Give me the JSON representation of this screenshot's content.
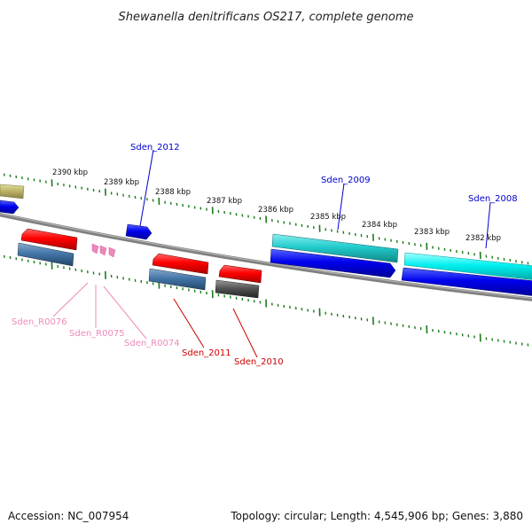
{
  "title": "Shewanella denitrificans OS217, complete genome",
  "footer": {
    "accession": "Accession: NC_007954",
    "summary": "Topology: circular; Length: 4,545,906 bp; Genes: 3,880"
  },
  "scale_labels": [
    "2390 kbp",
    "2389 kbp",
    "2388 kbp",
    "2387 kbp",
    "2386 kbp",
    "2385 kbp",
    "2384 kbp",
    "2383 kbp",
    "2382 kbp"
  ],
  "genes_upper": [
    {
      "label": "Sden_2012",
      "color": "#0000cc"
    },
    {
      "label": "Sden_2009",
      "color": "#0000cc"
    },
    {
      "label": "Sden_2008",
      "color": "#0000cc"
    }
  ],
  "genes_lower": [
    {
      "label": "Sden_R0076",
      "color": "#ee88bb"
    },
    {
      "label": "Sden_R0075",
      "color": "#ee88bb"
    },
    {
      "label": "Sden_R0074",
      "color": "#ee88bb"
    },
    {
      "label": "Sden_2011",
      "color": "#cc0000"
    },
    {
      "label": "Sden_2010",
      "color": "#cc0000"
    }
  ],
  "colors": {
    "backbone": "#808080",
    "tick": "#1a7a1a",
    "cds_forward": "#0000ee",
    "cds_reverse": "#ee0000",
    "cyan": "#22cccc",
    "light_cyan": "#00f0f0",
    "steel_blue": "#4477aa",
    "gray_feature": "#555555",
    "rna": "#ee88bb",
    "olive": "#bbb066"
  }
}
